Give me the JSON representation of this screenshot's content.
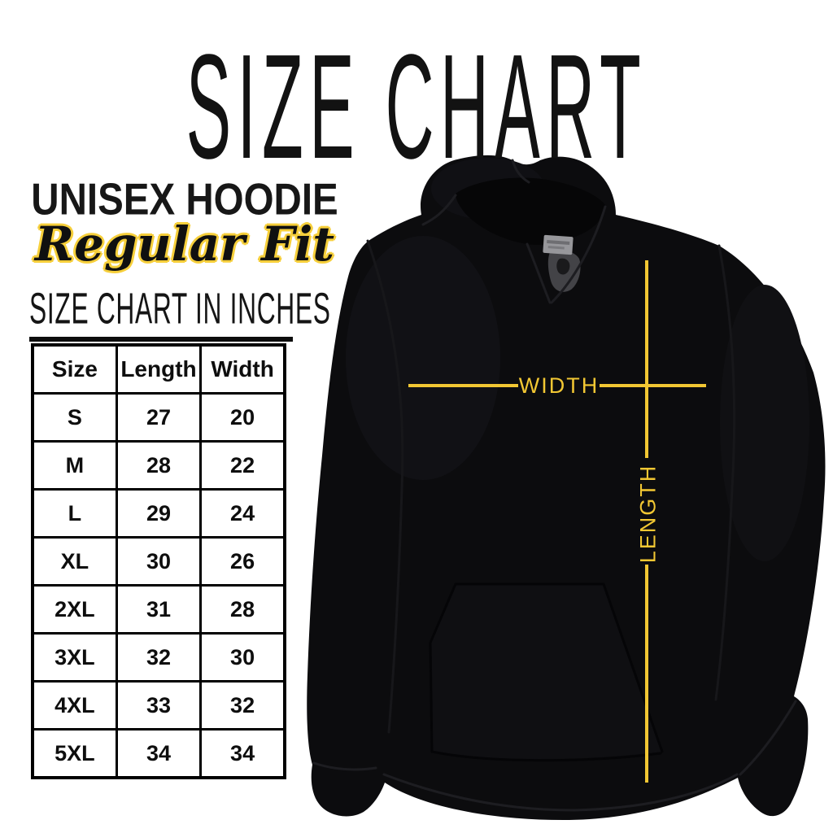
{
  "title": "SIZE CHART",
  "product": {
    "name": "UNISEX HOODIE",
    "fit": "Regular Fit"
  },
  "section_heading": "SIZE CHART IN INCHES",
  "measurement_overlay": {
    "width_label": "WIDTH",
    "length_label": "LENGTH"
  },
  "colors": {
    "accent_yellow": "#f2c733",
    "script_outline_yellow": "#f6cf3b",
    "ink": "#121212",
    "hoodie_black": "#0c0c0e",
    "background": "#ffffff"
  },
  "chart_data": {
    "type": "table",
    "title": "SIZE CHART IN INCHES",
    "units": "inches",
    "columns": [
      "Size",
      "Length",
      "Width"
    ],
    "rows": [
      [
        "S",
        "27",
        "20"
      ],
      [
        "M",
        "28",
        "22"
      ],
      [
        "L",
        "29",
        "24"
      ],
      [
        "XL",
        "30",
        "26"
      ],
      [
        "2XL",
        "31",
        "28"
      ],
      [
        "3XL",
        "32",
        "30"
      ],
      [
        "4XL",
        "33",
        "32"
      ],
      [
        "5XL",
        "34",
        "34"
      ]
    ]
  }
}
